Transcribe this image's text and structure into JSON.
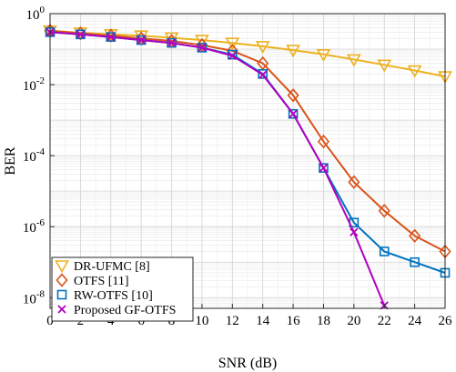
{
  "chart_data": {
    "type": "line",
    "title": "",
    "xlabel": "SNR (dB)",
    "ylabel": "BER",
    "xscale": "linear",
    "yscale": "log",
    "xlim": [
      0,
      26
    ],
    "ylim": [
      5e-09,
      1
    ],
    "xticks": [
      0,
      2,
      4,
      6,
      8,
      10,
      12,
      14,
      16,
      18,
      20,
      22,
      24,
      26
    ],
    "yticks": [
      {
        "value": 1,
        "base": "10",
        "exp": "0"
      },
      {
        "value": 0.01,
        "base": "10",
        "exp": "-2"
      },
      {
        "value": 0.0001,
        "base": "10",
        "exp": "-4"
      },
      {
        "value": 1e-06,
        "base": "10",
        "exp": "-6"
      },
      {
        "value": 1e-08,
        "base": "10",
        "exp": "-8"
      }
    ],
    "grid": true,
    "minor_grid": true,
    "legend_position": "bottom-left",
    "series": [
      {
        "name": "DR-UFMC [8]",
        "color": "#EDB120",
        "marker": "triangle-down",
        "x": [
          0,
          2,
          4,
          6,
          8,
          10,
          12,
          14,
          16,
          18,
          20,
          22,
          24,
          26
        ],
        "y": [
          0.33,
          0.29,
          0.26,
          0.24,
          0.21,
          0.18,
          0.15,
          0.12,
          0.094,
          0.071,
          0.051,
          0.036,
          0.025,
          0.017
        ]
      },
      {
        "name": "OTFS [11]",
        "color": "#D95319",
        "marker": "diamond",
        "x": [
          0,
          2,
          4,
          6,
          8,
          10,
          12,
          14,
          16,
          18,
          20,
          22,
          24,
          26
        ],
        "y": [
          0.33,
          0.28,
          0.24,
          0.2,
          0.17,
          0.13,
          0.09,
          0.04,
          0.005,
          0.00025,
          1.8e-05,
          2.8e-06,
          5.5e-07,
          2e-07
        ]
      },
      {
        "name": "RW-OTFS [10]",
        "color": "#0072BD",
        "marker": "square",
        "x": [
          0,
          2,
          4,
          6,
          8,
          10,
          12,
          14,
          16,
          18,
          20,
          22,
          24,
          26
        ],
        "y": [
          0.3,
          0.26,
          0.22,
          0.18,
          0.15,
          0.11,
          0.07,
          0.02,
          0.0015,
          4.5e-05,
          1.3e-06,
          2e-07,
          1e-07,
          5e-08
        ]
      },
      {
        "name": "Proposed GF-OTFS",
        "color": "#B000C0",
        "marker": "x",
        "x": [
          0,
          2,
          4,
          6,
          8,
          10,
          12,
          14,
          16,
          18,
          20,
          22
        ],
        "y": [
          0.3,
          0.26,
          0.22,
          0.18,
          0.15,
          0.11,
          0.065,
          0.019,
          0.0015,
          4.5e-05,
          7e-07,
          6e-09
        ]
      }
    ]
  }
}
